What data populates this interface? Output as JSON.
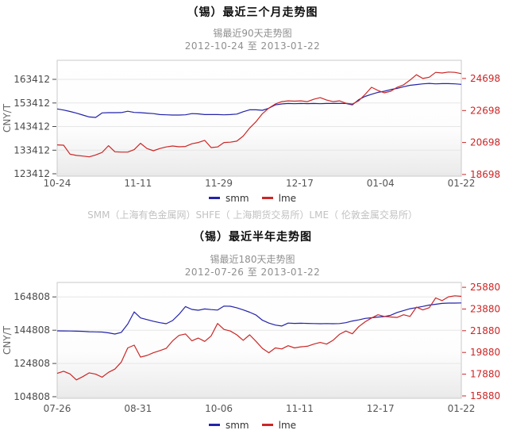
{
  "footer_note": "SMM（上海有色金属网）SHFE（ 上海期货交易所）LME（ 伦敦金属交易所）",
  "colors": {
    "smm_line": "#2323aa",
    "lme_line": "#cc2626",
    "grid": "#e6e6e6",
    "plot_border": "#c9c9c9",
    "left_axis_text": "#4a4a4a",
    "right_axis_text": "#cc2626",
    "x_axis_text": "#555555",
    "axis_title_text": "#666666",
    "title_text": "#0d0d0d",
    "subtitle_text": "#8f8f8f",
    "footnote_text": "#c2c2c2"
  },
  "chart_data": [
    {
      "type": "line",
      "title": "（锡）最近三个月走势图",
      "subtitle": "锡最近90天走势图",
      "date_range": "2012-10-24  至  2013-01-22",
      "ylabel": "CNY/T",
      "grid": true,
      "legend_position": "bottom",
      "x_ticks": [
        "10-24",
        "11-11",
        "11-29",
        "12-17",
        "01-04",
        "01-22"
      ],
      "y_left": {
        "ticks": [
          163412,
          153412,
          143412,
          133412,
          123412
        ],
        "min": 122400,
        "max": 171500,
        "color": "#4a4a4a"
      },
      "y_right": {
        "ticks": [
          24698,
          22698,
          20698,
          18698
        ],
        "min": 18596,
        "max": 25834,
        "color": "#cc2626"
      },
      "series": [
        {
          "name": "smm",
          "axis": "left",
          "color": "#2323aa",
          "values": [
            150900,
            150400,
            149800,
            149100,
            148300,
            147500,
            147300,
            149200,
            149300,
            149300,
            149350,
            149900,
            149400,
            149300,
            149100,
            148900,
            148500,
            148400,
            148300,
            148300,
            148400,
            148900,
            148800,
            148500,
            148500,
            148500,
            148400,
            148500,
            148700,
            149700,
            150500,
            150500,
            150300,
            151200,
            152600,
            153000,
            153200,
            153100,
            153200,
            153150,
            153200,
            153100,
            153200,
            153200,
            153250,
            153200,
            152600,
            154800,
            156200,
            157100,
            157900,
            158400,
            159100,
            159600,
            160300,
            160900,
            161200,
            161500,
            161700,
            161500,
            161600,
            161600,
            161500,
            161300
          ]
        },
        {
          "name": "lme",
          "axis": "right",
          "color": "#cc2626",
          "values": [
            20550,
            20530,
            19970,
            19890,
            19850,
            19800,
            19920,
            20080,
            20500,
            20120,
            20100,
            20100,
            20250,
            20650,
            20320,
            20180,
            20320,
            20420,
            20480,
            20430,
            20450,
            20620,
            20700,
            20830,
            20380,
            20420,
            20700,
            20720,
            20780,
            21100,
            21600,
            22000,
            22500,
            22850,
            23100,
            23250,
            23300,
            23280,
            23300,
            23250,
            23400,
            23500,
            23350,
            23250,
            23300,
            23150,
            23100,
            23300,
            23700,
            24150,
            23950,
            23800,
            23900,
            24150,
            24300,
            24600,
            24930,
            24700,
            24780,
            25080,
            25040,
            25100,
            25080,
            25000
          ]
        }
      ]
    },
    {
      "type": "line",
      "title": "（锡）最近半年走势图",
      "subtitle": "锡最近180天走势图",
      "date_range": "2012-07-26  至  2013-01-22",
      "ylabel": "CNY/T",
      "grid": true,
      "legend_position": "bottom",
      "x_ticks": [
        "07-26",
        "08-31",
        "10-06",
        "11-11",
        "12-17",
        "01-22"
      ],
      "y_left": {
        "ticks": [
          164808,
          144808,
          124808,
          104808
        ],
        "min": 103830,
        "max": 173519,
        "color": "#4a4a4a"
      },
      "y_right": {
        "ticks": [
          25880,
          23880,
          21880,
          19880,
          17880,
          15880
        ],
        "min": 15658,
        "max": 26325,
        "color": "#cc2626"
      },
      "series": [
        {
          "name": "smm",
          "axis": "left",
          "color": "#2323aa",
          "values": [
            144400,
            144350,
            144300,
            144200,
            144100,
            143900,
            143800,
            143700,
            143200,
            142500,
            143500,
            148500,
            155800,
            152200,
            151200,
            150200,
            149300,
            148700,
            150600,
            154400,
            159000,
            157300,
            156800,
            157600,
            157200,
            156900,
            159300,
            159200,
            158300,
            157000,
            155600,
            153900,
            150800,
            149100,
            147900,
            147300,
            149100,
            148900,
            149000,
            148900,
            148800,
            148700,
            148800,
            148700,
            148800,
            149300,
            150300,
            151000,
            151900,
            152300,
            152700,
            153000,
            153800,
            155500,
            156600,
            157700,
            158400,
            159100,
            159900,
            160400,
            160900,
            161100,
            161100,
            161200
          ]
        },
        {
          "name": "lme",
          "axis": "right",
          "color": "#cc2626",
          "values": [
            17950,
            18150,
            17900,
            17350,
            17650,
            18000,
            17880,
            17600,
            18050,
            18350,
            19000,
            20300,
            20550,
            19450,
            19600,
            19850,
            20050,
            20250,
            20950,
            21450,
            21580,
            20950,
            21200,
            20900,
            21400,
            22550,
            22000,
            21850,
            21500,
            21000,
            21500,
            20900,
            20250,
            19850,
            20300,
            20200,
            20500,
            20300,
            20400,
            20450,
            20650,
            20800,
            20650,
            21000,
            21550,
            21850,
            21600,
            22250,
            22700,
            23050,
            23350,
            23200,
            23150,
            23100,
            23350,
            23200,
            24050,
            23800,
            24000,
            24900,
            24650,
            25000,
            25100,
            25050
          ]
        }
      ]
    }
  ]
}
